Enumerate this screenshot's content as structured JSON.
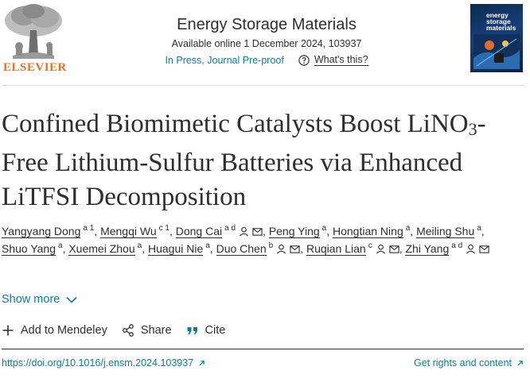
{
  "publisher": {
    "name": "ELSEVIER"
  },
  "journal": {
    "title": "Energy Storage Materials",
    "available": "Available online 1 December 2024, 103937",
    "status": "In Press, Journal Pre-proof",
    "whats_this": "What's this?",
    "cover_text_1": "energy",
    "cover_text_2": "storage",
    "cover_text_3": "materials"
  },
  "article": {
    "title_part1": "Confined Biomimetic Catalysts Boost LiNO",
    "title_sub": "3",
    "title_part2": "-Free Lithium-Sulfur Batteries via Enhanced LiTFSI Decomposition"
  },
  "authors": [
    {
      "name": "Yangyang Dong",
      "aff": "a 1"
    },
    {
      "name": "Mengqi Wu",
      "aff": "c 1"
    },
    {
      "name": "Dong Cai",
      "aff": "a d"
    },
    {
      "name": "Peng Ying",
      "aff": "a"
    },
    {
      "name": "Hongtian Ning",
      "aff": "a"
    },
    {
      "name": "Meiling Shu",
      "aff": "a"
    },
    {
      "name": "Shuo Yang",
      "aff": "a"
    },
    {
      "name": "Xuemei Zhou",
      "aff": "a"
    },
    {
      "name": "Huagui Nie",
      "aff": "a"
    },
    {
      "name": "Duo Chen",
      "aff": "b"
    },
    {
      "name": "Ruqian Lian",
      "aff": "c"
    },
    {
      "name": "Zhi Yang",
      "aff": "a d"
    }
  ],
  "separator": ",",
  "show_more": "Show more",
  "actions": {
    "mendeley": "Add to Mendeley",
    "share": "Share",
    "cite": "Cite"
  },
  "doi": "https://doi.org/10.1016/j.ensm.2024.103937",
  "rights": "Get rights and content",
  "colors": {
    "link": "#0c7d9d",
    "elsevier_orange": "#e9711c",
    "text": "#2e2e2e"
  }
}
